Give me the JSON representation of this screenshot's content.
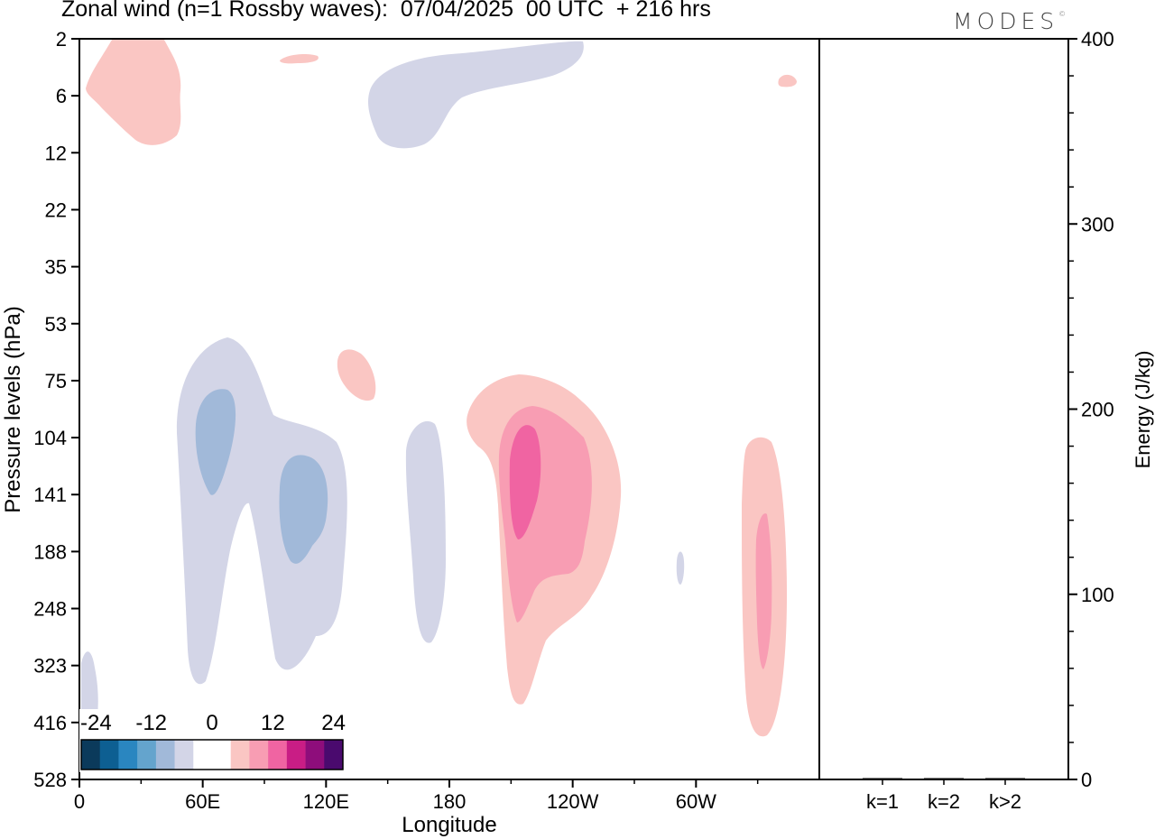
{
  "title": "Zonal wind (n=1 Rossby waves):  07/04/2025  00 UTC  + 216 hrs",
  "logo": "MODES",
  "logo_mark": "©",
  "chart_data": [
    {
      "type": "heatmap",
      "title": "Zonal wind (n=1 Rossby waves):  07/04/2025  00 UTC  + 216 hrs",
      "xlabel": "Longitude",
      "ylabel": "Pressure levels (hPa)",
      "x_ticks": [
        "0",
        "60E",
        "120E",
        "180",
        "120W",
        "60W"
      ],
      "x_tick_values": [
        0,
        60,
        120,
        180,
        240,
        300
      ],
      "x_range": [
        0,
        360
      ],
      "y_ticks": [
        "2",
        "6",
        "12",
        "22",
        "35",
        "53",
        "75",
        "104",
        "141",
        "188",
        "248",
        "323",
        "416",
        "528"
      ],
      "y_scale": "log",
      "colorbar": {
        "tick_labels": [
          "-24",
          "-12",
          "0",
          "12",
          "24"
        ],
        "colors": [
          "#0b3a5b",
          "#0d5f92",
          "#2a86c0",
          "#64a4cd",
          "#a1b9d9",
          "#d3d5e7",
          "#ffffff",
          "#ffffff",
          "#fac6c3",
          "#f89db3",
          "#f064a2",
          "#c91d85",
          "#8e0d7b",
          "#4a0a6e"
        ],
        "placement": "bottom-left"
      },
      "features": [
        {
          "sign": "positive",
          "max_level": 12,
          "lon": [
            3,
            50
          ],
          "hPa": [
            2,
            12
          ]
        },
        {
          "sign": "positive",
          "max_level": 12,
          "lon": [
            97,
            116
          ],
          "hPa": [
            2,
            4
          ]
        },
        {
          "sign": "negative",
          "max_level": -6,
          "lon": [
            140,
            246
          ],
          "hPa": [
            2,
            12
          ]
        },
        {
          "sign": "positive",
          "max_level": 12,
          "lon": [
            341,
            349
          ],
          "hPa": [
            4,
            6
          ]
        },
        {
          "sign": "negative",
          "max_level": -12,
          "lon": [
            48,
            138
          ],
          "hPa": [
            53,
            323
          ]
        },
        {
          "sign": "negative",
          "max_level": -6,
          "lon": [
            0,
            9
          ],
          "hPa": [
            323,
            528
          ]
        },
        {
          "sign": "positive",
          "max_level": 12,
          "lon": [
            126,
            145
          ],
          "hPa": [
            62,
            90
          ]
        },
        {
          "sign": "negative",
          "max_level": -6,
          "lon": [
            159,
            178
          ],
          "hPa": [
            100,
            300
          ]
        },
        {
          "sign": "positive",
          "max_level": 36,
          "lon": [
            189,
            263
          ],
          "hPa": [
            75,
            440
          ]
        },
        {
          "sign": "negative",
          "max_level": -6,
          "lon": [
            291,
            295
          ],
          "hPa": [
            185,
            212
          ]
        },
        {
          "sign": "positive",
          "max_level": 24,
          "lon": [
            323,
            344
          ],
          "hPa": [
            107,
            480
          ]
        }
      ]
    },
    {
      "type": "bar",
      "categories": [
        "k=1",
        "k=2",
        "k>2"
      ],
      "values": [
        0.5,
        0.2,
        0.3
      ],
      "ylabel": "Energy (J/kg)",
      "ylim": [
        0,
        400
      ],
      "y_ticks": [
        "0",
        "100",
        "200",
        "300",
        "400"
      ],
      "y_tick_values": [
        0,
        100,
        200,
        300,
        400
      ]
    }
  ]
}
